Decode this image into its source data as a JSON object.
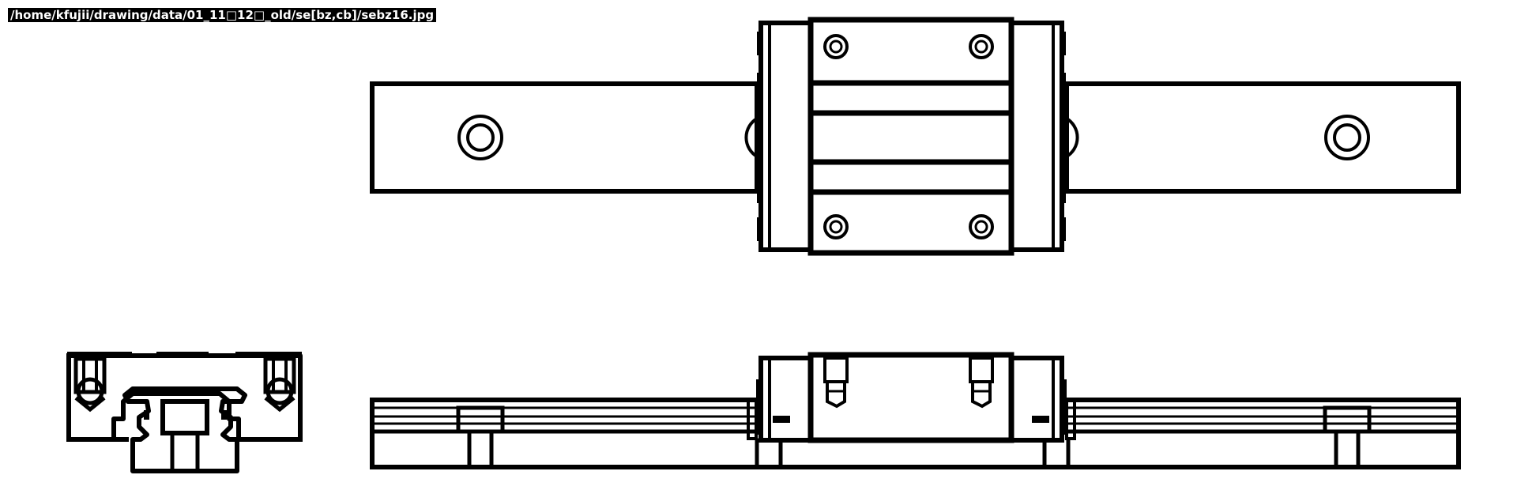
{
  "image_caption": {
    "path_text": "/home/kfujii/drawing/data/01_11□12□_old/se[bz,cb]/sebz16.jpg"
  },
  "drawing": {
    "line_color": "#000000",
    "background_color": "#ffffff",
    "views": [
      {
        "key": "top-view",
        "name": "top view (linear guide rail with carriage block)"
      },
      {
        "key": "side-view",
        "name": "side view"
      },
      {
        "key": "end-view",
        "name": "end view (cross-section)"
      }
    ]
  }
}
